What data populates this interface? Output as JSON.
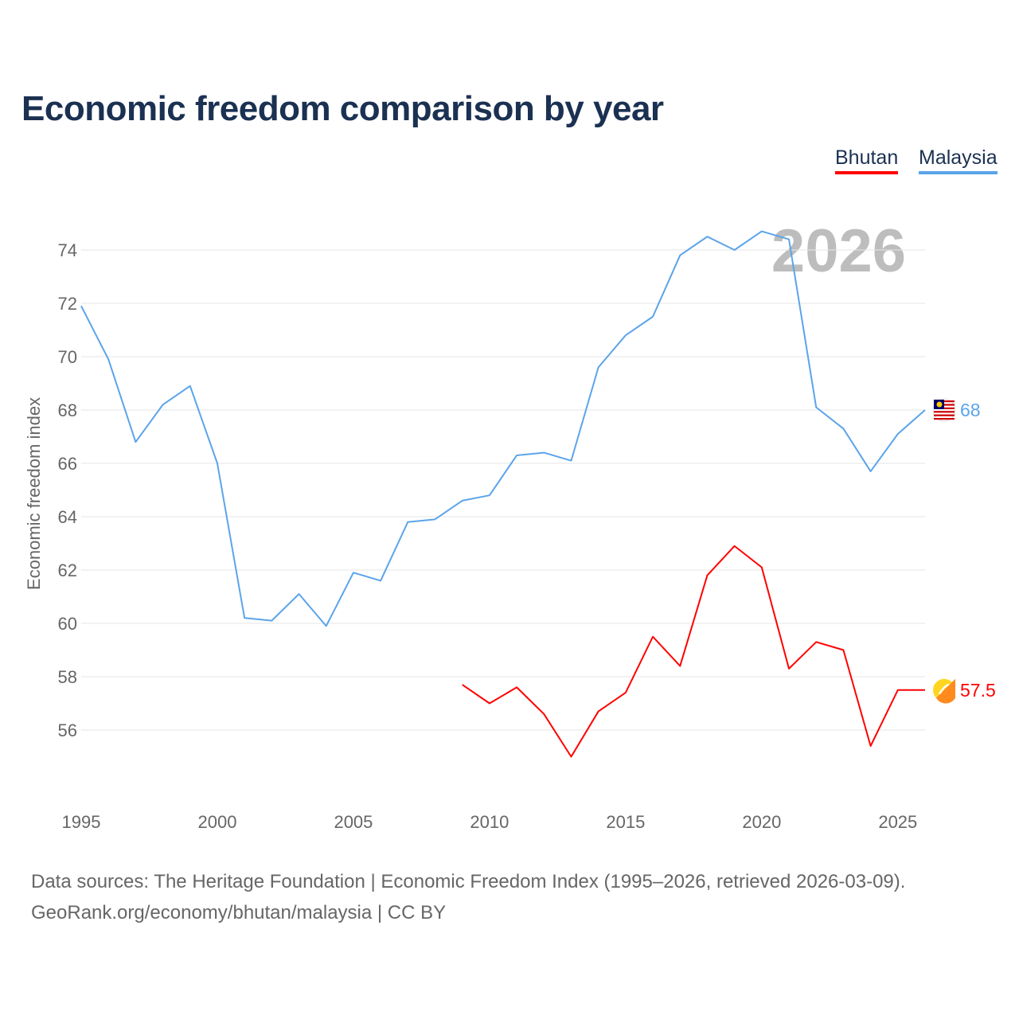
{
  "title": "Economic freedom comparison by year",
  "legend": [
    {
      "name": "Bhutan",
      "color": "#ff0000"
    },
    {
      "name": "Malaysia",
      "color": "#5ba4ea"
    }
  ],
  "watermark_year": "2026",
  "source_line1": "Data sources: The Heritage Foundation | Economic Freedom Index (1995–2026, retrieved 2026-03-09).",
  "source_line2": "GeoRank.org/economy/bhutan/malaysia | CC BY",
  "chart_data": {
    "type": "line",
    "title": "Economic freedom comparison by year",
    "xlabel": "",
    "ylabel": "Economic freedom index",
    "xlim": [
      1995,
      2026
    ],
    "ylim": [
      54,
      76
    ],
    "xticks": [
      1995,
      2000,
      2005,
      2010,
      2015,
      2020,
      2025
    ],
    "yticks": [
      56,
      58,
      60,
      62,
      64,
      66,
      68,
      70,
      72,
      74
    ],
    "grid": true,
    "legend_position": "top-right",
    "series": [
      {
        "name": "Malaysia",
        "color": "#5ba4ea",
        "end_label": "68",
        "x": [
          1995,
          1996,
          1997,
          1998,
          1999,
          2000,
          2001,
          2002,
          2003,
          2004,
          2005,
          2006,
          2007,
          2008,
          2009,
          2010,
          2011,
          2012,
          2013,
          2014,
          2015,
          2016,
          2017,
          2018,
          2019,
          2020,
          2021,
          2022,
          2023,
          2024,
          2025,
          2026
        ],
        "values": [
          71.9,
          69.9,
          66.8,
          68.2,
          68.9,
          66.0,
          60.2,
          60.1,
          61.1,
          59.9,
          61.9,
          61.6,
          63.8,
          63.9,
          64.6,
          64.8,
          66.3,
          66.4,
          66.1,
          69.6,
          70.8,
          71.5,
          73.8,
          74.5,
          74.0,
          74.7,
          74.4,
          68.1,
          67.3,
          65.7,
          67.1,
          68.0
        ]
      },
      {
        "name": "Bhutan",
        "color": "#ff0000",
        "end_label": "57.5",
        "x": [
          2009,
          2010,
          2011,
          2012,
          2013,
          2014,
          2015,
          2016,
          2017,
          2018,
          2019,
          2020,
          2021,
          2022,
          2023,
          2024,
          2025,
          2026
        ],
        "values": [
          57.7,
          57.0,
          57.6,
          56.6,
          55.0,
          56.7,
          57.4,
          59.5,
          58.4,
          61.8,
          62.9,
          62.1,
          58.3,
          59.3,
          59.0,
          55.4,
          57.5,
          57.5
        ]
      }
    ]
  }
}
